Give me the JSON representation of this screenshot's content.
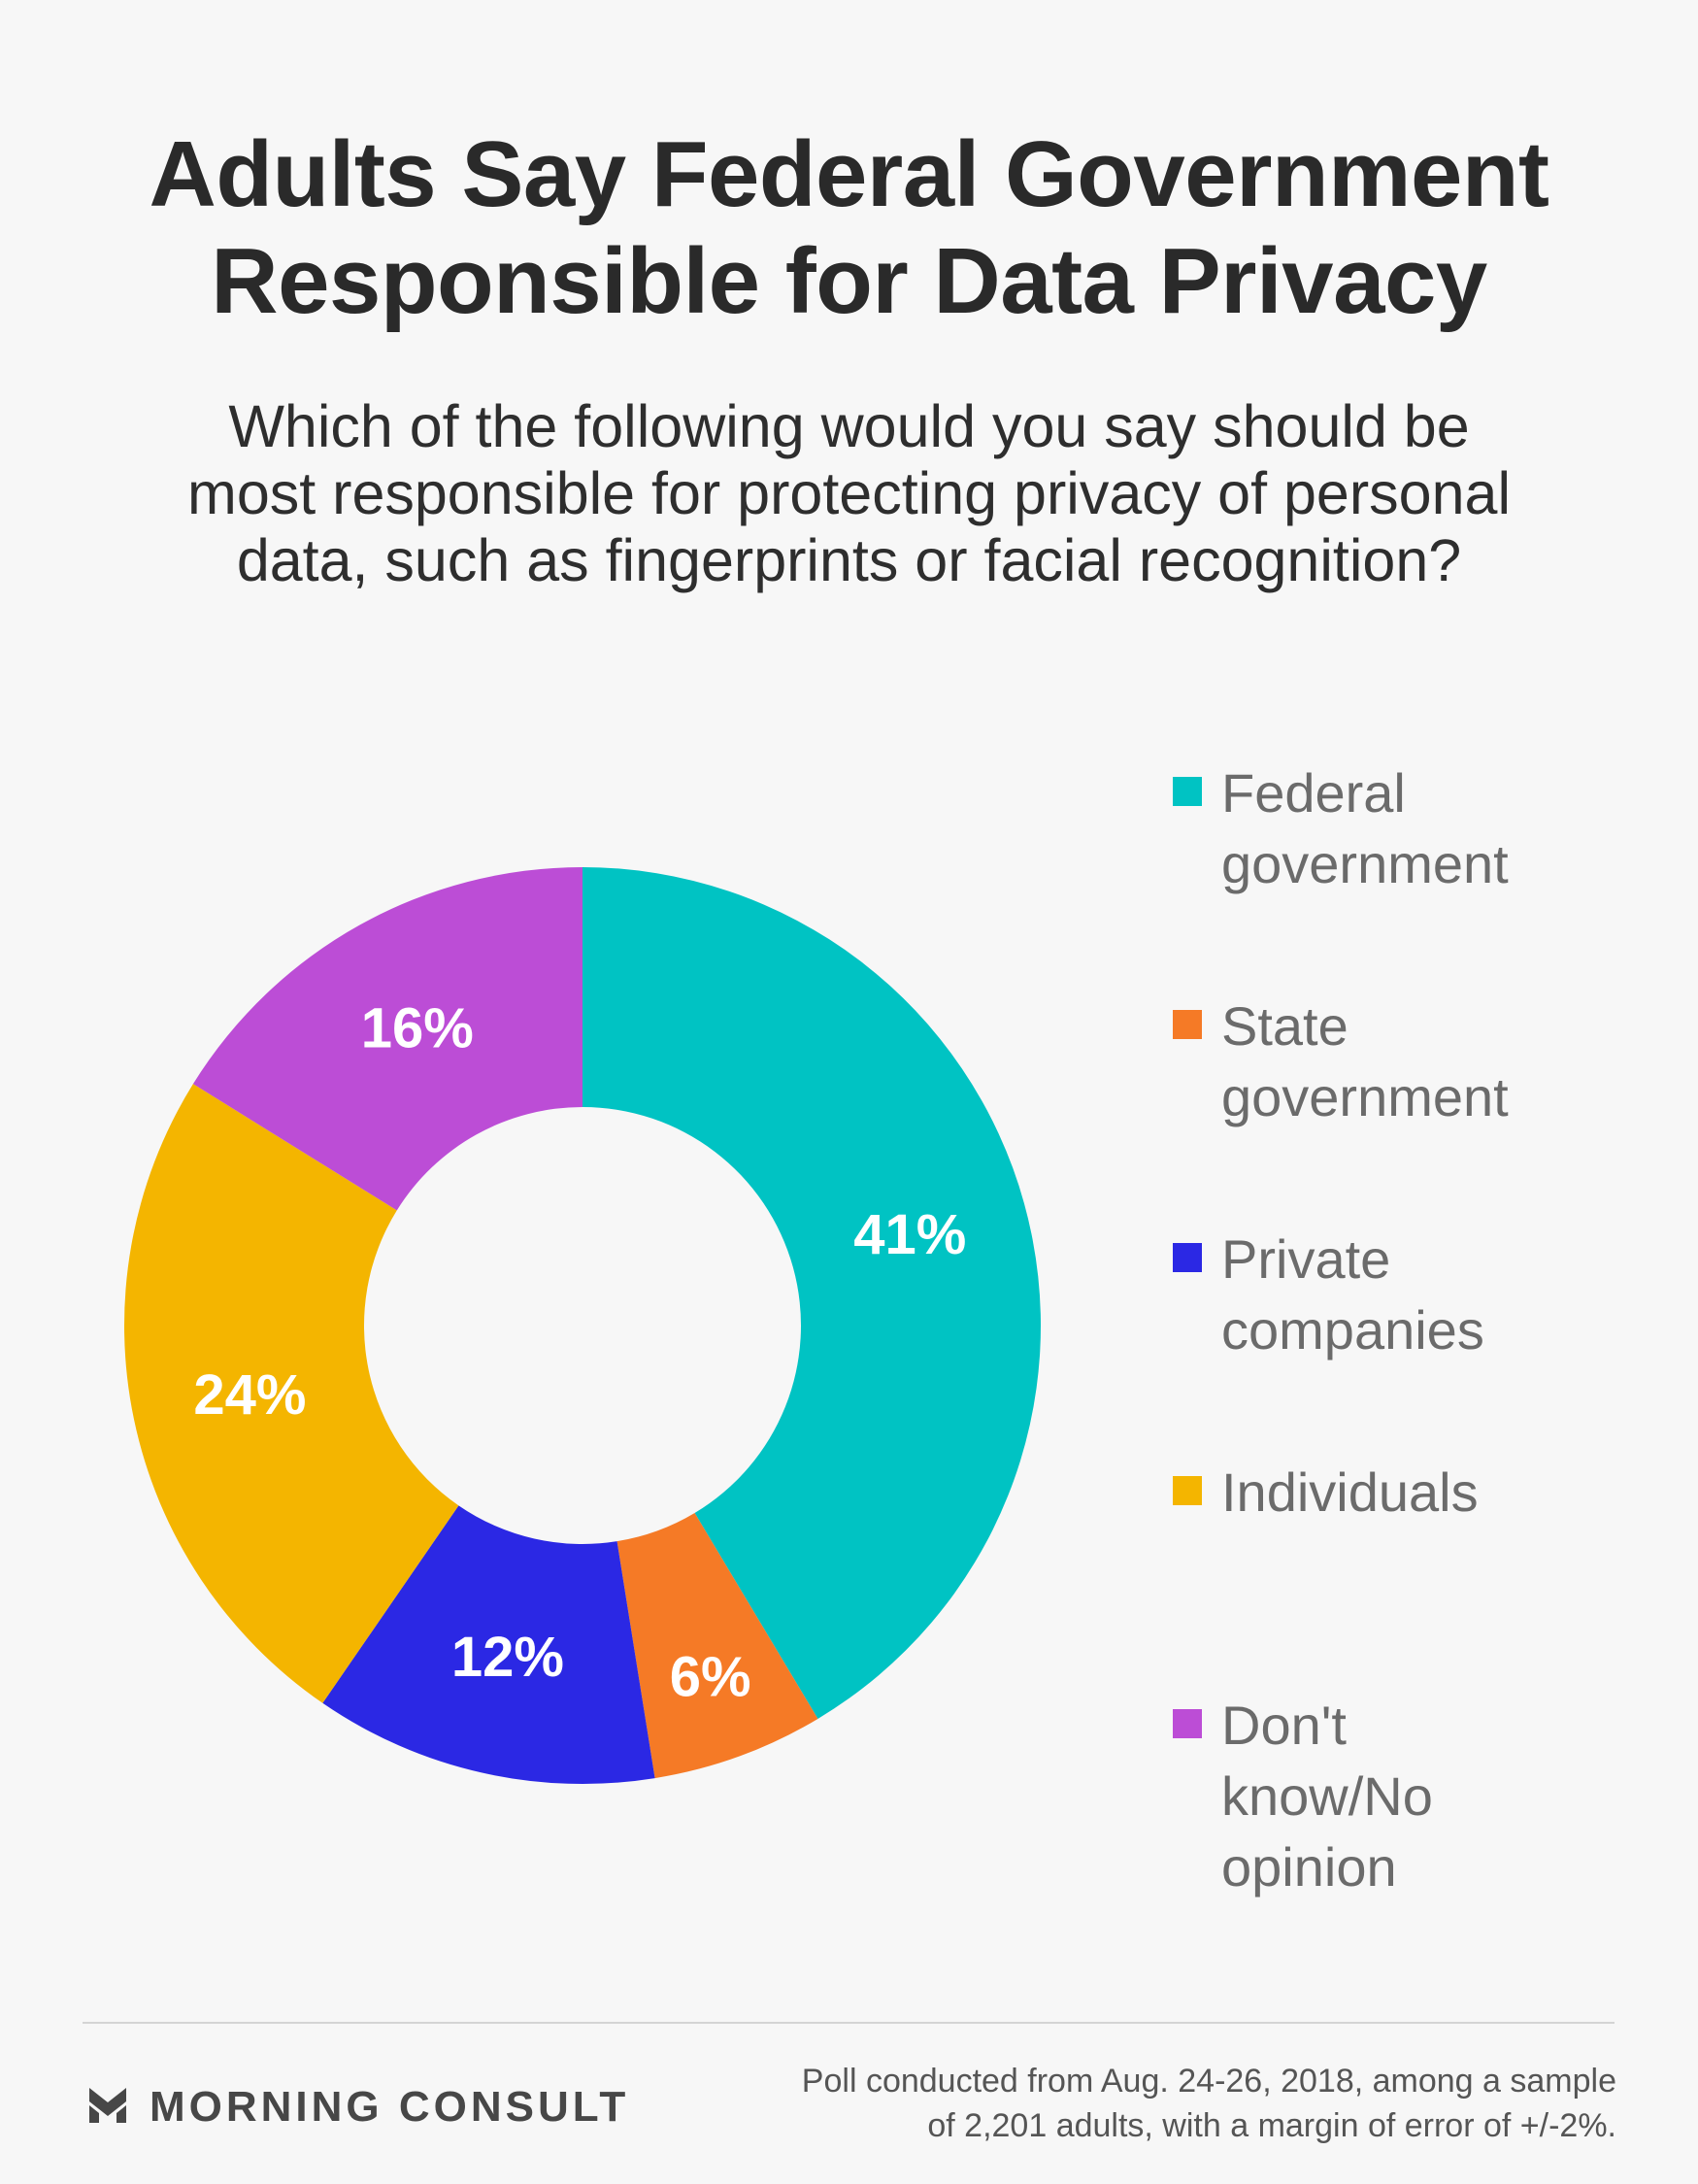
{
  "title_lines": [
    "Adults Say Federal Government",
    "Responsible for Data Privacy"
  ],
  "subtitle_lines": [
    "Which of the following would you say should be",
    "most responsible for protecting privacy of personal",
    "data, such as fingerprints or facial recognition?"
  ],
  "chart_data": {
    "type": "pie",
    "variant": "donut",
    "title": "Adults Say Federal Government Responsible for Data Privacy",
    "subtitle": "Which of the following would you say should be most responsible for protecting privacy of personal data, such as fingerprints or facial recognition?",
    "categories": [
      "Federal government",
      "State government",
      "Private companies",
      "Individuals",
      "Don't know/No opinion"
    ],
    "values": [
      41,
      6,
      12,
      24,
      16
    ],
    "labels": [
      "41%",
      "6%",
      "12%",
      "24%",
      "16%"
    ],
    "colors": [
      "#00c3c3",
      "#f57a26",
      "#2b28e4",
      "#f4b500",
      "#bc4dd6"
    ],
    "legend_position": "right"
  },
  "legend": [
    {
      "lines": [
        "Federal",
        "government"
      ],
      "color": "#00c3c3"
    },
    {
      "lines": [
        "State",
        "government"
      ],
      "color": "#f57a26"
    },
    {
      "lines": [
        "Private",
        "companies"
      ],
      "color": "#2b28e4"
    },
    {
      "lines": [
        "Individuals"
      ],
      "color": "#f4b500"
    },
    {
      "lines": [
        "Don't",
        "know/No",
        "opinion"
      ],
      "color": "#bc4dd6"
    }
  ],
  "footer": {
    "brand": "MORNING CONSULT",
    "note_lines": [
      "Poll conducted from Aug. 24-26, 2018, among a sample",
      "of 2,201 adults, with a margin of error of +/-2%."
    ]
  }
}
